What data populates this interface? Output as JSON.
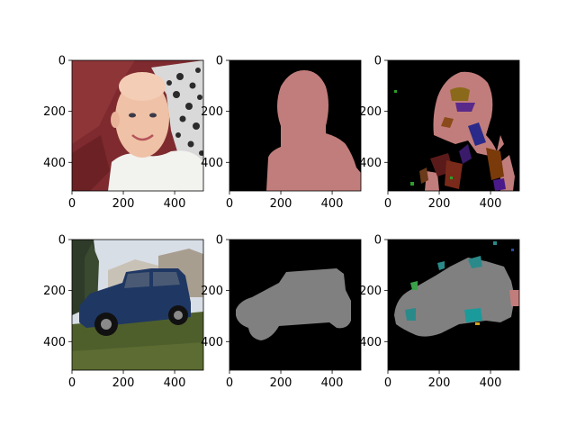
{
  "chart_data": [
    {
      "type": "image",
      "content": "photo of a smiling baby against a red blanket and patterned pillow",
      "xlim": [
        0,
        512
      ],
      "ylim": [
        512,
        0
      ],
      "xticks": [
        0,
        200,
        400
      ],
      "yticks": [
        0,
        200,
        400
      ],
      "xtick_labels": [
        "0",
        "200",
        "400"
      ],
      "ytick_labels": [
        "0",
        "200",
        "400"
      ]
    },
    {
      "type": "image",
      "content": "ground-truth segmentation mask: person silhouette",
      "mask_color": "#c17d7b",
      "background": "#000000",
      "xlim": [
        0,
        512
      ],
      "ylim": [
        512,
        0
      ],
      "xticks": [
        0,
        200,
        400
      ],
      "yticks": [
        0,
        200,
        400
      ],
      "xtick_labels": [
        "0",
        "200",
        "400"
      ],
      "ytick_labels": [
        "0",
        "200",
        "400"
      ]
    },
    {
      "type": "image",
      "content": "predicted segmentation mask: noisy person silhouette",
      "mask_color": "#c17d7b",
      "background": "#000000",
      "xlim": [
        0,
        512
      ],
      "ylim": [
        512,
        0
      ],
      "xticks": [
        0,
        200,
        400
      ],
      "yticks": [
        0,
        200,
        400
      ],
      "xtick_labels": [
        "0",
        "200",
        "400"
      ],
      "ytick_labels": [
        "0",
        "200",
        "400"
      ]
    },
    {
      "type": "image",
      "content": "photo of a dark blue SUV parked on grass in front of houses",
      "xlim": [
        0,
        512
      ],
      "ylim": [
        512,
        0
      ],
      "xticks": [
        0,
        200,
        400
      ],
      "yticks": [
        0,
        200,
        400
      ],
      "xtick_labels": [
        "0",
        "200",
        "400"
      ],
      "ytick_labels": [
        "0",
        "200",
        "400"
      ]
    },
    {
      "type": "image",
      "content": "ground-truth segmentation mask: car silhouette",
      "mask_color": "#808080",
      "background": "#000000",
      "xlim": [
        0,
        512
      ],
      "ylim": [
        512,
        0
      ],
      "xticks": [
        0,
        200,
        400
      ],
      "yticks": [
        0,
        200,
        400
      ],
      "xtick_labels": [
        "0",
        "200",
        "400"
      ],
      "ytick_labels": [
        "0",
        "200",
        "400"
      ]
    },
    {
      "type": "image",
      "content": "predicted segmentation mask: car silhouette with teal/green noise",
      "mask_color": "#808080",
      "background": "#000000",
      "xlim": [
        0,
        512
      ],
      "ylim": [
        512,
        0
      ],
      "xticks": [
        0,
        200,
        400
      ],
      "yticks": [
        0,
        200,
        400
      ],
      "xtick_labels": [
        "0",
        "200",
        "400"
      ],
      "ytick_labels": [
        "0",
        "200",
        "400"
      ]
    }
  ]
}
